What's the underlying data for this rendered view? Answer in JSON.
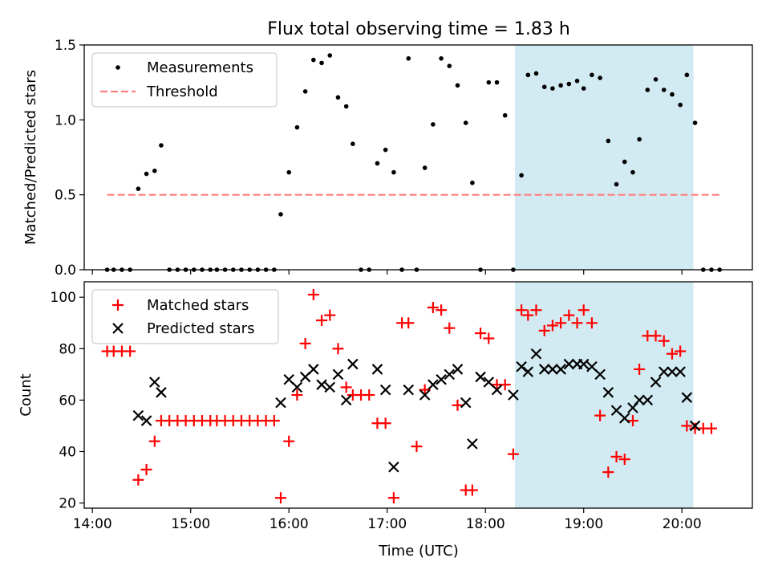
{
  "figure": {
    "title": "Flux total observing time = 1.83 h",
    "xlabel": "Time (UTC)"
  },
  "colors": {
    "measure": "#000000",
    "threshold": "#ff7f7f",
    "matched": "#ff0000",
    "predicted": "#000000",
    "shade": "#add8e6"
  },
  "chart_data": [
    {
      "type": "scatter",
      "ylabel": "Matched/Predicted stars",
      "xlim": [
        "13:55",
        "20:43"
      ],
      "ylim": [
        0,
        1.5
      ],
      "yticks": [
        "0.0",
        "0.5",
        "1.0",
        "1.5"
      ],
      "shaded_interval": [
        "18:18",
        "20:07"
      ],
      "legend": {
        "position": "top-left",
        "entries": [
          "Measurements",
          "Threshold"
        ]
      },
      "threshold": {
        "name": "Threshold",
        "value": 0.5,
        "x_start": "14:09",
        "x_end": "20:24"
      },
      "series": [
        {
          "name": "Measurements",
          "points": [
            [
              "14:09",
              0
            ],
            [
              "14:13",
              0
            ],
            [
              "14:18",
              0
            ],
            [
              "14:23",
              0
            ],
            [
              "14:28",
              0.54
            ],
            [
              "14:33",
              0.64
            ],
            [
              "14:38",
              0.66
            ],
            [
              "14:42",
              0.83
            ],
            [
              "14:47",
              0
            ],
            [
              "14:52",
              0
            ],
            [
              "14:57",
              0
            ],
            [
              "15:02",
              0
            ],
            [
              "15:07",
              0
            ],
            [
              "15:12",
              0
            ],
            [
              "15:16",
              0
            ],
            [
              "15:21",
              0
            ],
            [
              "15:26",
              0
            ],
            [
              "15:31",
              0
            ],
            [
              "15:36",
              0
            ],
            [
              "15:41",
              0
            ],
            [
              "15:46",
              0
            ],
            [
              "15:51",
              0
            ],
            [
              "15:55",
              0.37
            ],
            [
              "16:00",
              0.65
            ],
            [
              "16:05",
              0.95
            ],
            [
              "16:10",
              1.19
            ],
            [
              "16:15",
              1.4
            ],
            [
              "16:20",
              1.38
            ],
            [
              "16:25",
              1.43
            ],
            [
              "16:30",
              1.15
            ],
            [
              "16:35",
              1.09
            ],
            [
              "16:39",
              0.84
            ],
            [
              "16:44",
              0
            ],
            [
              "16:49",
              0
            ],
            [
              "16:54",
              0.71
            ],
            [
              "16:59",
              0.8
            ],
            [
              "17:04",
              0.65
            ],
            [
              "17:09",
              0
            ],
            [
              "17:13",
              1.41
            ],
            [
              "17:18",
              0
            ],
            [
              "17:23",
              0.68
            ],
            [
              "17:28",
              0.97
            ],
            [
              "17:33",
              1.41
            ],
            [
              "17:38",
              1.36
            ],
            [
              "17:43",
              1.23
            ],
            [
              "17:48",
              0.98
            ],
            [
              "17:52",
              0.58
            ],
            [
              "17:57",
              0
            ],
            [
              "18:02",
              1.25
            ],
            [
              "18:07",
              1.25
            ],
            [
              "18:12",
              1.03
            ],
            [
              "18:17",
              0
            ],
            [
              "18:22",
              0.63
            ],
            [
              "18:26",
              1.3
            ],
            [
              "18:31",
              1.31
            ],
            [
              "18:36",
              1.22
            ],
            [
              "18:41",
              1.21
            ],
            [
              "18:46",
              1.23
            ],
            [
              "18:51",
              1.24
            ],
            [
              "18:56",
              1.26
            ],
            [
              "19:00",
              1.21
            ],
            [
              "19:05",
              1.3
            ],
            [
              "19:10",
              1.28
            ],
            [
              "19:15",
              0.86
            ],
            [
              "19:20",
              0.57
            ],
            [
              "19:25",
              0.72
            ],
            [
              "19:30",
              0.65
            ],
            [
              "19:34",
              0.87
            ],
            [
              "19:39",
              1.2
            ],
            [
              "19:44",
              1.27
            ],
            [
              "19:49",
              1.2
            ],
            [
              "19:54",
              1.17
            ],
            [
              "19:59",
              1.1
            ],
            [
              "20:03",
              1.3
            ],
            [
              "20:08",
              0.98
            ],
            [
              "20:13",
              0
            ],
            [
              "20:18",
              0
            ],
            [
              "20:23",
              0
            ]
          ]
        }
      ]
    },
    {
      "type": "scatter",
      "ylabel": "Count",
      "xlim": [
        "13:55",
        "20:43"
      ],
      "ylim": [
        18,
        106
      ],
      "yticks": [
        "20",
        "40",
        "60",
        "80",
        "100"
      ],
      "xticks": [
        "14:00",
        "15:00",
        "16:00",
        "17:00",
        "18:00",
        "19:00",
        "20:00"
      ],
      "shaded_interval": [
        "18:18",
        "20:07"
      ],
      "legend": {
        "position": "top-left",
        "entries": [
          "Matched stars",
          "Predicted stars"
        ]
      },
      "series": [
        {
          "name": "Matched stars",
          "points": [
            [
              "14:09",
              79
            ],
            [
              "14:13",
              79
            ],
            [
              "14:18",
              79
            ],
            [
              "14:23",
              79
            ],
            [
              "14:28",
              29
            ],
            [
              "14:33",
              33
            ],
            [
              "14:38",
              44
            ],
            [
              "14:42",
              52
            ],
            [
              "14:47",
              52
            ],
            [
              "14:52",
              52
            ],
            [
              "14:57",
              52
            ],
            [
              "15:02",
              52
            ],
            [
              "15:07",
              52
            ],
            [
              "15:12",
              52
            ],
            [
              "15:16",
              52
            ],
            [
              "15:21",
              52
            ],
            [
              "15:26",
              52
            ],
            [
              "15:31",
              52
            ],
            [
              "15:36",
              52
            ],
            [
              "15:41",
              52
            ],
            [
              "15:46",
              52
            ],
            [
              "15:51",
              52
            ],
            [
              "15:55",
              22
            ],
            [
              "16:00",
              44
            ],
            [
              "16:05",
              62
            ],
            [
              "16:10",
              82
            ],
            [
              "16:15",
              101
            ],
            [
              "16:20",
              91
            ],
            [
              "16:25",
              93
            ],
            [
              "16:30",
              80
            ],
            [
              "16:35",
              65
            ],
            [
              "16:39",
              62
            ],
            [
              "16:44",
              62
            ],
            [
              "16:49",
              62
            ],
            [
              "16:54",
              51
            ],
            [
              "16:59",
              51
            ],
            [
              "17:04",
              22
            ],
            [
              "17:09",
              90
            ],
            [
              "17:13",
              90
            ],
            [
              "17:18",
              42
            ],
            [
              "17:23",
              64
            ],
            [
              "17:28",
              96
            ],
            [
              "17:33",
              95
            ],
            [
              "17:38",
              88
            ],
            [
              "17:43",
              58
            ],
            [
              "17:48",
              25
            ],
            [
              "17:52",
              25
            ],
            [
              "17:57",
              86
            ],
            [
              "18:02",
              84
            ],
            [
              "18:07",
              66
            ],
            [
              "18:12",
              66
            ],
            [
              "18:17",
              39
            ],
            [
              "18:22",
              95
            ],
            [
              "18:26",
              93
            ],
            [
              "18:31",
              95
            ],
            [
              "18:36",
              87
            ],
            [
              "18:41",
              89
            ],
            [
              "18:46",
              90
            ],
            [
              "18:51",
              93
            ],
            [
              "18:56",
              90
            ],
            [
              "19:00",
              95
            ],
            [
              "19:05",
              90
            ],
            [
              "19:10",
              54
            ],
            [
              "19:15",
              32
            ],
            [
              "19:20",
              38
            ],
            [
              "19:25",
              37
            ],
            [
              "19:30",
              52
            ],
            [
              "19:34",
              72
            ],
            [
              "19:39",
              85
            ],
            [
              "19:44",
              85
            ],
            [
              "19:49",
              83
            ],
            [
              "19:54",
              78
            ],
            [
              "19:59",
              79
            ],
            [
              "20:03",
              50
            ],
            [
              "20:08",
              49
            ],
            [
              "20:13",
              49
            ],
            [
              "20:18",
              49
            ]
          ]
        },
        {
          "name": "Predicted stars",
          "points": [
            [
              "14:28",
              54
            ],
            [
              "14:33",
              52
            ],
            [
              "14:38",
              67
            ],
            [
              "14:42",
              63
            ],
            [
              "15:55",
              59
            ],
            [
              "16:00",
              68
            ],
            [
              "16:05",
              65
            ],
            [
              "16:10",
              69
            ],
            [
              "16:15",
              72
            ],
            [
              "16:20",
              66
            ],
            [
              "16:25",
              65
            ],
            [
              "16:30",
              70
            ],
            [
              "16:35",
              60
            ],
            [
              "16:39",
              74
            ],
            [
              "16:54",
              72
            ],
            [
              "16:59",
              64
            ],
            [
              "17:04",
              34
            ],
            [
              "17:13",
              64
            ],
            [
              "17:23",
              62
            ],
            [
              "17:28",
              66
            ],
            [
              "17:33",
              68
            ],
            [
              "17:38",
              70
            ],
            [
              "17:43",
              72
            ],
            [
              "17:48",
              59
            ],
            [
              "17:52",
              43
            ],
            [
              "17:57",
              69
            ],
            [
              "18:02",
              67
            ],
            [
              "18:07",
              64
            ],
            [
              "18:17",
              62
            ],
            [
              "18:22",
              73
            ],
            [
              "18:26",
              71
            ],
            [
              "18:31",
              78
            ],
            [
              "18:36",
              72
            ],
            [
              "18:41",
              72
            ],
            [
              "18:46",
              72
            ],
            [
              "18:51",
              74
            ],
            [
              "18:56",
              74
            ],
            [
              "19:00",
              74
            ],
            [
              "19:05",
              73
            ],
            [
              "19:10",
              70
            ],
            [
              "19:15",
              63
            ],
            [
              "19:20",
              56
            ],
            [
              "19:25",
              53
            ],
            [
              "19:30",
              57
            ],
            [
              "19:34",
              60
            ],
            [
              "19:39",
              60
            ],
            [
              "19:44",
              67
            ],
            [
              "19:49",
              71
            ],
            [
              "19:54",
              71
            ],
            [
              "19:59",
              71
            ],
            [
              "20:03",
              61
            ],
            [
              "20:08",
              50
            ]
          ]
        }
      ]
    }
  ]
}
